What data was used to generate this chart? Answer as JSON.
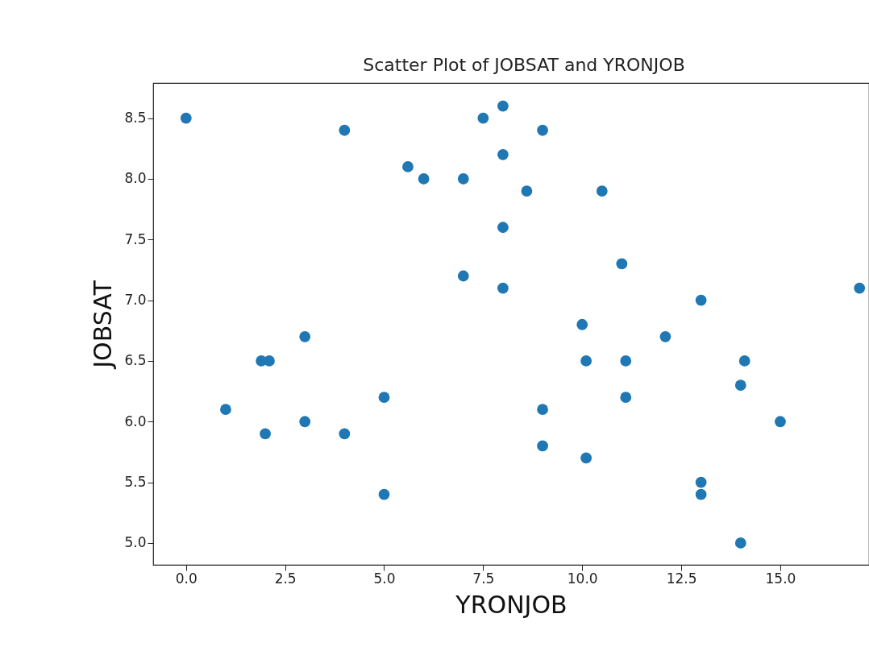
{
  "chart_data": {
    "type": "scatter",
    "title": "Scatter Plot of JOBSAT and YRONJOB",
    "xlabel": "YRONJOB",
    "ylabel": "JOBSAT",
    "x": [
      0,
      4,
      7.5,
      8,
      9,
      8,
      5.6,
      6,
      7,
      8.6,
      10.5,
      8,
      11,
      7,
      8,
      17,
      13,
      10,
      3,
      12.1,
      1.9,
      2.1,
      10.1,
      11.1,
      14.1,
      14,
      1,
      9,
      5,
      11.1,
      3,
      15,
      2,
      4,
      9,
      10.1,
      13,
      13,
      5,
      14
    ],
    "values": [
      8.5,
      8.4,
      8.5,
      8.6,
      8.4,
      8.2,
      8.1,
      8.0,
      8.0,
      7.9,
      7.9,
      7.6,
      7.3,
      7.2,
      7.1,
      7.1,
      7.0,
      6.8,
      6.7,
      6.7,
      6.5,
      6.5,
      6.5,
      6.5,
      6.5,
      6.3,
      6.1,
      6.1,
      6.2,
      6.2,
      6.0,
      6.0,
      5.9,
      5.9,
      5.8,
      5.7,
      5.5,
      5.4,
      5.4,
      5.0
    ],
    "color": "#1f77b4",
    "marker": "circle",
    "grid": false,
    "xlim": [
      -0.83,
      17.24
    ],
    "xticks": [
      {
        "value": 0,
        "label": "0.0"
      },
      {
        "value": 2.5,
        "label": "2.5"
      },
      {
        "value": 5,
        "label": "5.0"
      },
      {
        "value": 7.5,
        "label": "7.5"
      },
      {
        "value": 10,
        "label": "10.0"
      },
      {
        "value": 12.5,
        "label": "12.5"
      },
      {
        "value": 15,
        "label": "15.0"
      }
    ],
    "ylim": [
      4.82,
      8.79
    ],
    "yticks": [
      {
        "value": 5,
        "label": "5.0"
      },
      {
        "value": 5.5,
        "label": "5.5"
      },
      {
        "value": 6,
        "label": "6.0"
      },
      {
        "value": 6.5,
        "label": "6.5"
      },
      {
        "value": 7,
        "label": "7.0"
      },
      {
        "value": 7.5,
        "label": "7.5"
      },
      {
        "value": 8,
        "label": "8.0"
      },
      {
        "value": 8.5,
        "label": "8.5"
      }
    ]
  }
}
